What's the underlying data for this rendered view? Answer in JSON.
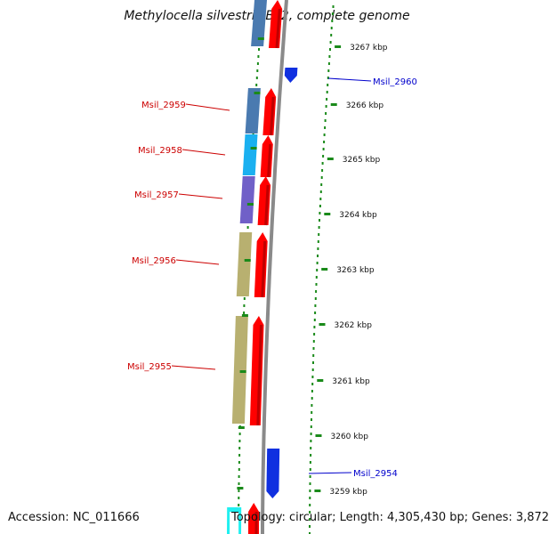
{
  "title": "Methylocella silvestris BL2, complete genome",
  "accession": "Accession: NC_011666",
  "summary": "Topology: circular; Length: 4,305,430 bp; Genes: 3,872",
  "colors": {
    "forward_gene": "#ff0000",
    "reverse_gene": "#1030e0",
    "forward_label": "#cc0000",
    "reverse_label": "#0000cc",
    "tick": "#1a8a1a",
    "backbone": "#8a8a8a",
    "cog_a": "#4a7ab0",
    "cog_b": "#1ab0f0",
    "cog_c": "#7060c8",
    "cog_d": "#b8b070"
  },
  "scale_labels": [
    "3267 kbp",
    "3266 kbp",
    "3265 kbp",
    "3264 kbp",
    "3263 kbp",
    "3262 kbp",
    "3261 kbp",
    "3260 kbp",
    "3259 kbp"
  ],
  "gene_labels": [
    {
      "text": "Msil_2959",
      "strand": "forward"
    },
    {
      "text": "Msil_2958",
      "strand": "forward"
    },
    {
      "text": "Msil_2957",
      "strand": "forward"
    },
    {
      "text": "Msil_2956",
      "strand": "forward"
    },
    {
      "text": "Msil_2955",
      "strand": "forward"
    },
    {
      "text": "Msil_2960",
      "strand": "reverse"
    },
    {
      "text": "Msil_2954",
      "strand": "reverse"
    }
  ]
}
